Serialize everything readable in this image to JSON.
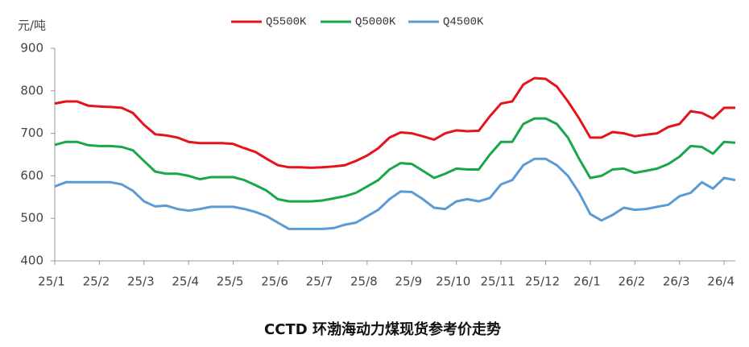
{
  "chart_data": {
    "type": "line",
    "title": "CCTD 环渤海动力煤现货参考价走势",
    "y_label": "元/吨",
    "categories": [
      "25/1",
      null,
      null,
      null,
      "25/2",
      null,
      null,
      null,
      "25/3",
      null,
      null,
      null,
      "25/4",
      null,
      null,
      null,
      "25/5",
      null,
      null,
      null,
      "25/6",
      null,
      null,
      null,
      "25/7",
      null,
      null,
      null,
      "25/8",
      null,
      null,
      null,
      "25/9",
      null,
      null,
      null,
      "25/10",
      null,
      null,
      null,
      "25/11",
      null,
      null,
      null,
      "25/12",
      null,
      null,
      null,
      "26/1",
      null,
      null,
      null,
      "26/2",
      null,
      null,
      null,
      "26/3",
      null,
      null,
      null,
      "26/4",
      null
    ],
    "series": [
      {
        "name": "Q5500K",
        "color": "#e3141b",
        "values": [
          770,
          775,
          775,
          765,
          763,
          762,
          760,
          748,
          720,
          698,
          695,
          690,
          680,
          677,
          677,
          677,
          675,
          665,
          656,
          640,
          625,
          620,
          620,
          619,
          620,
          622,
          625,
          635,
          648,
          665,
          690,
          702,
          700,
          693,
          685,
          700,
          707,
          705,
          706,
          740,
          770,
          775,
          815,
          830,
          828,
          810,
          775,
          735,
          690,
          690,
          703,
          700,
          693,
          697,
          700,
          715,
          722,
          752,
          748,
          735,
          760,
          760
        ]
      },
      {
        "name": "Q5000K",
        "color": "#1aa64a",
        "values": [
          673,
          680,
          680,
          672,
          670,
          670,
          668,
          660,
          635,
          610,
          605,
          605,
          600,
          592,
          597,
          597,
          597,
          590,
          578,
          565,
          545,
          540,
          540,
          540,
          542,
          547,
          552,
          560,
          575,
          590,
          615,
          630,
          628,
          612,
          595,
          605,
          617,
          615,
          615,
          650,
          680,
          680,
          722,
          735,
          735,
          722,
          690,
          640,
          595,
          600,
          615,
          617,
          607,
          612,
          617,
          628,
          645,
          670,
          668,
          652,
          680,
          678
        ]
      },
      {
        "name": "Q4500K",
        "color": "#5b9bd5",
        "values": [
          575,
          585,
          585,
          585,
          585,
          585,
          580,
          565,
          540,
          528,
          530,
          522,
          518,
          522,
          527,
          527,
          527,
          522,
          515,
          505,
          490,
          475,
          475,
          475,
          475,
          477,
          485,
          490,
          505,
          520,
          545,
          563,
          562,
          545,
          525,
          522,
          540,
          545,
          540,
          548,
          580,
          590,
          625,
          640,
          640,
          625,
          600,
          560,
          510,
          495,
          508,
          525,
          520,
          522,
          527,
          532,
          552,
          560,
          585,
          570,
          595,
          590
        ]
      }
    ],
    "ylim": [
      400,
      900
    ],
    "yticks": [
      400,
      500,
      600,
      700,
      800,
      900
    ]
  }
}
